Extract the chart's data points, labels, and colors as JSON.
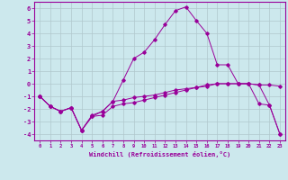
{
  "xlabel": "Windchill (Refroidissement éolien,°C)",
  "line_color": "#990099",
  "bg_color": "#cce8ed",
  "grid_color": "#b0c8cc",
  "xlim": [
    -0.5,
    23.5
  ],
  "ylim": [
    -4.5,
    6.5
  ],
  "xticks": [
    0,
    1,
    2,
    3,
    4,
    5,
    6,
    7,
    8,
    9,
    10,
    11,
    12,
    13,
    14,
    15,
    16,
    17,
    18,
    19,
    20,
    21,
    22,
    23
  ],
  "yticks": [
    -4,
    -3,
    -2,
    -1,
    0,
    1,
    2,
    3,
    4,
    5,
    6
  ],
  "line1_x": [
    0,
    1,
    2,
    3,
    4,
    5,
    6,
    7,
    8,
    9,
    10,
    11,
    12,
    13,
    14,
    15,
    16,
    17,
    18,
    19,
    20,
    21,
    22,
    23
  ],
  "line1_y": [
    -1.0,
    -1.8,
    -2.2,
    -1.9,
    -3.7,
    -2.5,
    -2.2,
    -1.4,
    -1.3,
    -1.1,
    -1.0,
    -0.9,
    -0.7,
    -0.5,
    -0.4,
    -0.3,
    -0.1,
    0.0,
    0.0,
    0.0,
    0.0,
    -0.1,
    -0.1,
    -0.2
  ],
  "line2_x": [
    0,
    1,
    2,
    3,
    4,
    5,
    6,
    7,
    8,
    9,
    10,
    11,
    12,
    13,
    14,
    15,
    16,
    17,
    18,
    19,
    20,
    21,
    22,
    23
  ],
  "line2_y": [
    -1.0,
    -1.8,
    -2.2,
    -1.9,
    -3.7,
    -2.6,
    -2.5,
    -1.8,
    -1.6,
    -1.5,
    -1.3,
    -1.1,
    -0.9,
    -0.7,
    -0.5,
    -0.3,
    -0.2,
    0.0,
    0.0,
    0.0,
    0.0,
    -1.6,
    -1.7,
    -4.0
  ],
  "line3_x": [
    0,
    1,
    2,
    3,
    4,
    5,
    6,
    7,
    8,
    9,
    10,
    11,
    12,
    13,
    14,
    15,
    16,
    17,
    18,
    19,
    20,
    21,
    22,
    23
  ],
  "line3_y": [
    -1.0,
    -1.8,
    -2.2,
    -1.9,
    -3.7,
    -2.6,
    -2.2,
    -1.4,
    0.3,
    2.0,
    2.5,
    3.5,
    4.7,
    5.8,
    6.1,
    5.0,
    4.0,
    1.5,
    1.5,
    0.0,
    0.0,
    -0.1,
    -1.7,
    -4.0
  ]
}
